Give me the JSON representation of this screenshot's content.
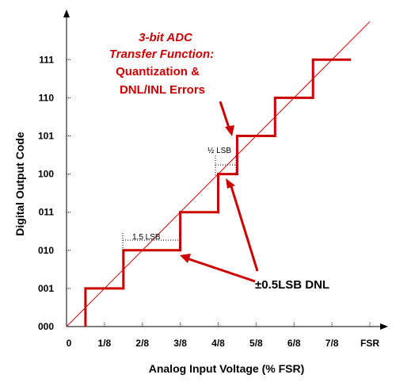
{
  "chart_data": {
    "type": "line",
    "title_lines": [
      "3-bit ADC",
      "Transfer Function:",
      "Quantization &",
      "DNL/INL Errors"
    ],
    "xlabel": "Analog Input Voltage (% FSR)",
    "ylabel": "Digital Output Code",
    "x_ticks": [
      "0",
      "1/8",
      "2/8",
      "3/8",
      "4/8",
      "5/8",
      "6/8",
      "7/8",
      "FSR"
    ],
    "y_ticks": [
      "000",
      "001",
      "010",
      "011",
      "100",
      "101",
      "110",
      "111"
    ],
    "xlim": [
      0,
      1
    ],
    "ylim": [
      0,
      7
    ],
    "ideal_line": {
      "x": [
        0,
        1
      ],
      "y": [
        0,
        8
      ]
    },
    "series": [
      {
        "x": [
          0.0625,
          0.0625,
          0.1875,
          0.1875,
          0.375,
          0.375,
          0.5,
          0.5,
          0.5625,
          0.5625,
          0.6875,
          0.6875,
          0.8125,
          0.8125,
          0.9375
        ],
        "y": [
          0,
          1,
          1,
          2,
          2,
          3,
          3,
          4,
          4,
          5,
          5,
          6,
          6,
          7,
          7
        ]
      }
    ],
    "annotations": {
      "lsb_1_5": "1.5 LSB",
      "lsb_half": "½ LSB",
      "dnl": "±0.5LSB DNL"
    },
    "colors": {
      "step": "#cc0000",
      "ideal": "#cc0000",
      "text": "#cc0000"
    }
  }
}
